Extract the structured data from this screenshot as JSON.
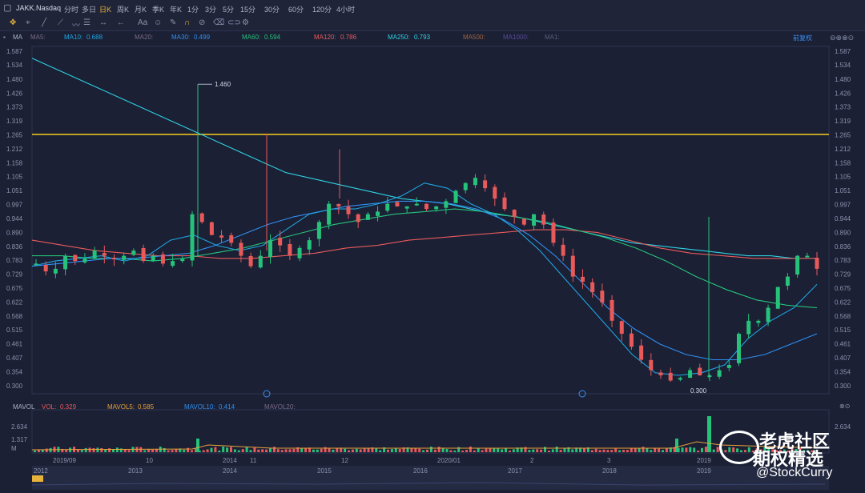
{
  "toolbar": {
    "symbol": "JAKK.Nasdaq",
    "periods": [
      "分时",
      "多日",
      "日K",
      "周K",
      "月K",
      "季K",
      "年K",
      "1分",
      "3分",
      "5分",
      "15分",
      "30分",
      "60分",
      "120分",
      "4小时"
    ],
    "active_period": "日K"
  },
  "ma_panel": {
    "label": "MA",
    "items": [
      {
        "name": "MA5:",
        "value": "",
        "color": "#7a6a8a"
      },
      {
        "name": "MA10:",
        "value": "0.688",
        "color": "#1fa4e0"
      },
      {
        "name": "MA20:",
        "value": "",
        "color": "#7a6a8a"
      },
      {
        "name": "MA30:",
        "value": "0.499",
        "color": "#2f8ff0"
      },
      {
        "name": "MA60:",
        "value": "0.594",
        "color": "#26c27a"
      },
      {
        "name": "MA120:",
        "value": "0.786",
        "color": "#e85a5a"
      },
      {
        "name": "MA250:",
        "value": "0.793",
        "color": "#2fd0e0"
      },
      {
        "name": "MA500:",
        "value": "",
        "color": "#a0643a"
      },
      {
        "name": "MA1000:",
        "value": "",
        "color": "#5a4a9a"
      },
      {
        "name": "MA1:",
        "value": "",
        "color": "#5a5f7a"
      }
    ],
    "adjust_label": "前复权"
  },
  "vol_panel": {
    "label": "MAVOL",
    "items": [
      {
        "name": "VOL:",
        "value": "0.329",
        "color": "#e85a5a"
      },
      {
        "name": "MAVOL5:",
        "value": "0.585",
        "color": "#e8a03a"
      },
      {
        "name": "MAVOL10:",
        "value": "0.414",
        "color": "#2f8ff0"
      },
      {
        "name": "MAVOL20:",
        "value": "",
        "color": "#7a6a8a"
      }
    ],
    "y_ticks": [
      "2.634",
      "1.317",
      "M"
    ]
  },
  "watermark": {
    "line1": "老虎社区",
    "line2": "期权精选",
    "line3": "@StockCurry"
  },
  "chart_data": {
    "type": "candlestick",
    "y_ticks": [
      "1.587",
      "1.534",
      "1.480",
      "1.426",
      "1.373",
      "1.319",
      "1.265",
      "1.212",
      "1.158",
      "1.105",
      "1.051",
      "0.997",
      "0.944",
      "0.890",
      "0.836",
      "0.783",
      "0.729",
      "0.675",
      "0.622",
      "0.568",
      "0.515",
      "0.461",
      "0.407",
      "0.354",
      "0.300"
    ],
    "ylim": [
      0.3,
      1.587
    ],
    "horizontal_line": 1.267,
    "annotations": [
      {
        "label": "1.460",
        "value": 1.46
      },
      {
        "label": "0.300",
        "value": 0.3
      }
    ],
    "x_labels_top": [
      "2019/09",
      "10",
      "2014",
      "11",
      "12",
      "2020/01",
      "2",
      "3",
      "2019"
    ],
    "x_labels_bottom": [
      "2012",
      "2013",
      "2014",
      "2015",
      "2016",
      "2017",
      "2018",
      "2019"
    ],
    "close_path": [
      0.77,
      0.74,
      0.75,
      0.8,
      0.78,
      0.79,
      0.82,
      0.8,
      0.79,
      0.8,
      0.82,
      0.78,
      0.8,
      0.77,
      0.78,
      0.78,
      0.96,
      0.93,
      0.88,
      0.87,
      0.85,
      0.8,
      0.76,
      0.8,
      0.86,
      0.84,
      0.8,
      0.83,
      0.86,
      0.93,
      1.0,
      0.99,
      0.96,
      0.93,
      0.96,
      0.97,
      1.0,
      0.99,
      0.99,
      1.0,
      0.98,
      0.99,
      1.01,
      1.05,
      1.08,
      1.1,
      1.06,
      1.02,
      0.98,
      0.95,
      0.92,
      0.96,
      0.92,
      0.85,
      0.8,
      0.72,
      0.7,
      0.66,
      0.62,
      0.55,
      0.5,
      0.45,
      0.4,
      0.36,
      0.34,
      0.32,
      0.33,
      0.36,
      0.34,
      0.34,
      0.36,
      0.38,
      0.5,
      0.55,
      0.55,
      0.6,
      0.68,
      0.72,
      0.8,
      0.8,
      0.75
    ],
    "ma250": [
      1.56,
      1.52,
      1.48,
      1.44,
      1.4,
      1.36,
      1.32,
      1.28,
      1.24,
      1.2,
      1.16,
      1.12,
      1.1,
      1.08,
      1.06,
      1.04,
      1.02,
      1.01,
      1.0,
      0.98,
      0.96,
      0.95,
      0.93,
      0.91,
      0.89,
      0.87,
      0.85,
      0.84,
      0.83,
      0.82,
      0.81,
      0.8,
      0.8,
      0.79,
      0.79
    ],
    "ma120": [
      0.86,
      0.84,
      0.82,
      0.81,
      0.8,
      0.8,
      0.79,
      0.79,
      0.8,
      0.81,
      0.83,
      0.84,
      0.86,
      0.87,
      0.88,
      0.89,
      0.9,
      0.9,
      0.89,
      0.86,
      0.83,
      0.81,
      0.8,
      0.79,
      0.79,
      0.79
    ],
    "ma60": [
      0.8,
      0.8,
      0.79,
      0.79,
      0.78,
      0.79,
      0.81,
      0.83,
      0.86,
      0.89,
      0.92,
      0.94,
      0.96,
      0.97,
      0.98,
      0.97,
      0.95,
      0.93,
      0.9,
      0.87,
      0.83,
      0.78,
      0.72,
      0.67,
      0.63,
      0.61,
      0.6
    ],
    "ma30": [
      0.76,
      0.77,
      0.78,
      0.79,
      0.79,
      0.8,
      0.81,
      0.84,
      0.88,
      0.92,
      0.95,
      0.97,
      0.99,
      1.0,
      1.01,
      1.01,
      1.0,
      0.98,
      0.94,
      0.88,
      0.8,
      0.7,
      0.6,
      0.52,
      0.46,
      0.42,
      0.4,
      0.4,
      0.42,
      0.46,
      0.5
    ],
    "ma10": [
      0.76,
      0.78,
      0.79,
      0.8,
      0.78,
      0.8,
      0.86,
      0.88,
      0.84,
      0.82,
      0.84,
      0.9,
      0.96,
      0.98,
      0.98,
      1.0,
      1.03,
      1.08,
      1.06,
      1.0,
      0.96,
      0.9,
      0.82,
      0.72,
      0.62,
      0.52,
      0.42,
      0.35,
      0.34,
      0.35,
      0.38,
      0.48,
      0.55,
      0.6,
      0.69
    ]
  }
}
